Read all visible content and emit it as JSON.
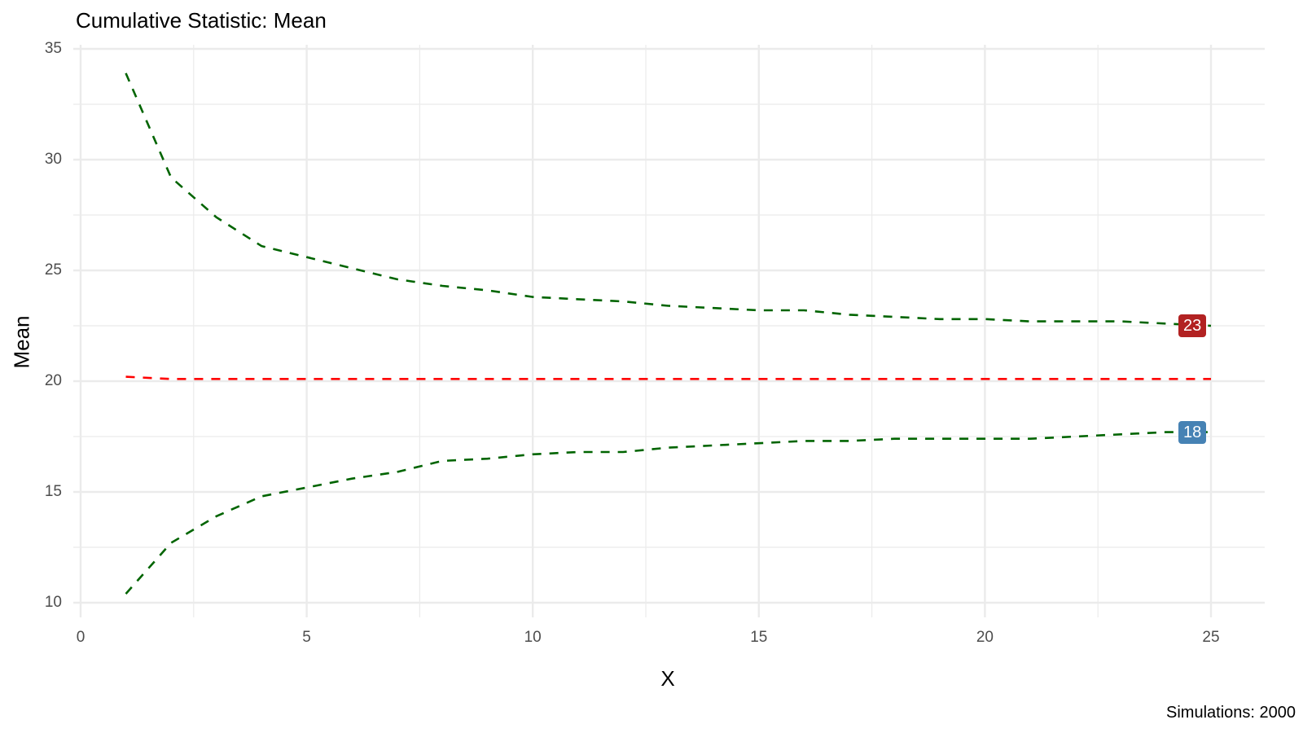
{
  "chart_data": {
    "type": "line",
    "title": "Cumulative Statistic: Mean",
    "xlabel": "X",
    "ylabel": "Mean",
    "caption": "Simulations: 2000",
    "xlim": [
      0,
      25
    ],
    "ylim": [
      10,
      35
    ],
    "x_ticks": [
      0,
      5,
      10,
      15,
      20,
      25
    ],
    "y_ticks": [
      10,
      15,
      20,
      25,
      30,
      35
    ],
    "grid": true,
    "legend": "none",
    "x": [
      1,
      2,
      3,
      4,
      5,
      6,
      7,
      8,
      9,
      10,
      11,
      12,
      13,
      14,
      15,
      16,
      17,
      18,
      19,
      20,
      21,
      22,
      23,
      24,
      25
    ],
    "series": [
      {
        "name": "Upper bound",
        "color": "#006400",
        "dash": "dashed",
        "values": [
          33.9,
          29.2,
          27.4,
          26.1,
          25.6,
          25.1,
          24.6,
          24.3,
          24.1,
          23.8,
          23.7,
          23.6,
          23.4,
          23.3,
          23.2,
          23.2,
          23.0,
          22.9,
          22.8,
          22.8,
          22.7,
          22.7,
          22.7,
          22.6,
          22.5
        ]
      },
      {
        "name": "Mean",
        "color": "#FF0000",
        "dash": "dashed",
        "values": [
          20.2,
          20.1,
          20.1,
          20.1,
          20.1,
          20.1,
          20.1,
          20.1,
          20.1,
          20.1,
          20.1,
          20.1,
          20.1,
          20.1,
          20.1,
          20.1,
          20.1,
          20.1,
          20.1,
          20.1,
          20.1,
          20.1,
          20.1,
          20.1,
          20.1
        ]
      },
      {
        "name": "Lower bound",
        "color": "#006400",
        "dash": "dashed",
        "values": [
          10.4,
          12.7,
          13.9,
          14.8,
          15.2,
          15.6,
          15.9,
          16.4,
          16.5,
          16.7,
          16.8,
          16.8,
          17.0,
          17.1,
          17.2,
          17.3,
          17.3,
          17.4,
          17.4,
          17.4,
          17.4,
          17.5,
          17.6,
          17.7,
          17.7
        ]
      }
    ],
    "annotations": [
      {
        "text": "23",
        "x": 25,
        "y": 22.5,
        "background": "#B22222",
        "color": "#FFFFFF"
      },
      {
        "text": "18",
        "x": 25,
        "y": 17.7,
        "background": "#4682B4",
        "color": "#FFFFFF"
      }
    ]
  },
  "labels": {
    "title": "Cumulative Statistic: Mean",
    "xlabel": "X",
    "ylabel": "Mean",
    "caption": "Simulations: 2000",
    "upper_end_label": "23",
    "lower_end_label": "18"
  }
}
